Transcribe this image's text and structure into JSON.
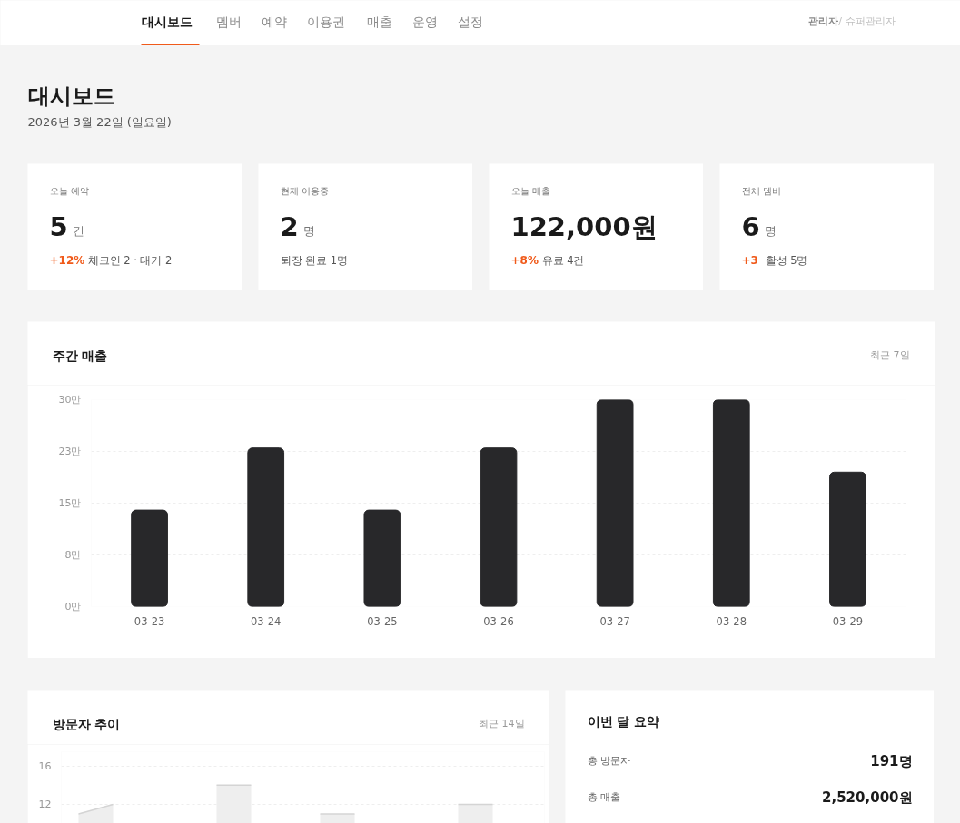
{
  "chart_data": [
    {
      "type": "other",
      "annotations": [
        "대시보드",
        "멤버",
        "예약",
        "이용권",
        "매출",
        "운영",
        "설정",
        "관리자",
        "/ 슈퍼관리자"
      ]
    },
    {
      "type": "other",
      "title": "대시보드",
      "subtitle": "2026년 3월 22일 (일요일)"
    },
    {
      "type": "other",
      "title": "오늘 예약",
      "subtitle": "+12%",
      "annotations": [
        "5",
        "건",
        "체크인 2 · 대기 2"
      ]
    },
    {
      "type": "other",
      "title": "현재 이용중",
      "annotations": [
        "2",
        "명",
        "퇴장 완료 1명"
      ]
    },
    {
      "type": "other",
      "title": "오늘 매출",
      "subtitle": "+8%",
      "annotations": [
        "122,000원",
        "유료 4건"
      ]
    },
    {
      "type": "other",
      "title": "전체 멤버",
      "subtitle": "+3",
      "annotations": [
        "6",
        "명",
        "활성 5명"
      ]
    },
    {
      "type": "bar",
      "title": "주간 매출",
      "annotations": [
        "최근 7일"
      ],
      "categories": [
        "03-23",
        "03-24",
        "03-25",
        "03-26",
        "03-27",
        "03-28",
        "03-29"
      ],
      "values": [
        14,
        23,
        14,
        23,
        30,
        30,
        19.5
      ],
      "color": "#28282a",
      "ylim": [
        0,
        30
      ],
      "yticks": [
        {
          "value": 0,
          "label": "0만"
        },
        {
          "value": 7.5,
          "label": "8만"
        },
        {
          "value": 15,
          "label": "15만"
        },
        {
          "value": 22.5,
          "label": "23만"
        },
        {
          "value": 30,
          "label": "30만"
        }
      ],
      "grid": "y"
    },
    {
      "type": "area",
      "title": "방문자 추이",
      "annotations": [
        "최근 14일"
      ],
      "categories": [
        null,
        null,
        null,
        null,
        null,
        null,
        null,
        null,
        null,
        null,
        null,
        null,
        null,
        null
      ],
      "series": [
        {
          "color": "#d4d4d4",
          "values": [
            11,
            12,
            null,
            null,
            14,
            14,
            null,
            11,
            11,
            null,
            null,
            12,
            12,
            null
          ]
        }
      ],
      "ylim": [
        10,
        17.5
      ],
      "yticks": [
        12,
        16
      ],
      "grid": "y",
      "tick_labels": "y"
    },
    {
      "type": "other",
      "title": "이번 달 요약",
      "annotations": [
        "총 방문자",
        "191명",
        "총 매출",
        "2,520,000원"
      ]
    }
  ]
}
